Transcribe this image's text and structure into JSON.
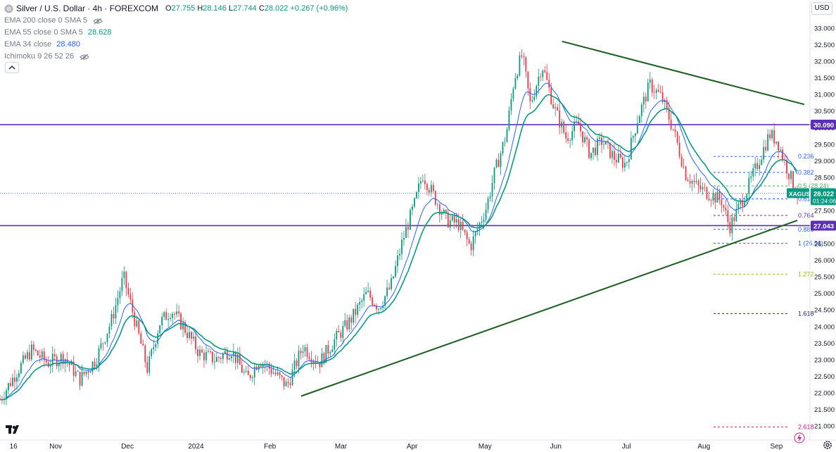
{
  "header": {
    "symbol_icon": "silver-coin-icon",
    "title": "Silver / U.S. Dollar · 4h · FOREXCOM",
    "open_label": "O",
    "open": "27.755",
    "high_label": "H",
    "high": "28.146",
    "low_label": "L",
    "low": "27.744",
    "close_label": "C",
    "close": "28.022",
    "change": "+0.267 (+0.96%)"
  },
  "indicators": [
    {
      "name": "EMA 200 close 0 SMA 5",
      "value": "",
      "color": "#787b86"
    },
    {
      "name": "EMA 55 close 0 SMA 5",
      "value": "28.628",
      "color": "#089981"
    },
    {
      "name": "EMA 34 close",
      "value": "28.480",
      "color": "#2962ff"
    },
    {
      "name": "Ichimoku 9 26 52 26",
      "value": "",
      "color": "#787b86"
    }
  ],
  "currency_label": "USD",
  "logo": "tradingview-logo",
  "chart_data": {
    "type": "candlestick",
    "symbol": "XAGUSD",
    "timeframe": "4h",
    "x_tick_labels": [
      "16",
      "Nov",
      "Dec",
      "2024",
      "Feb",
      "Mar",
      "Apr",
      "May",
      "Jun",
      "Jul",
      "Aug",
      "Sep"
    ],
    "y_tick_labels": [
      "21.000",
      "21.500",
      "22.000",
      "22.500",
      "23.000",
      "23.500",
      "24.000",
      "24.500",
      "25.000",
      "25.500",
      "26.000",
      "26.500",
      "27.000",
      "27.500",
      "28.000",
      "28.500",
      "29.000",
      "29.500",
      "30.000",
      "30.500",
      "31.000",
      "31.500",
      "32.000",
      "32.500",
      "33.000"
    ],
    "ylim": [
      20.7,
      33.3
    ],
    "price_path": [
      [
        0,
        21.8
      ],
      [
        0.02,
        22.6
      ],
      [
        0.04,
        23.3
      ],
      [
        0.06,
        22.9
      ],
      [
        0.08,
        23.1
      ],
      [
        0.1,
        22.4
      ],
      [
        0.12,
        23.0
      ],
      [
        0.14,
        24.2
      ],
      [
        0.155,
        25.5
      ],
      [
        0.17,
        24.1
      ],
      [
        0.185,
        22.7
      ],
      [
        0.2,
        24.1
      ],
      [
        0.215,
        24.5
      ],
      [
        0.23,
        24.0
      ],
      [
        0.25,
        23.2
      ],
      [
        0.27,
        23.0
      ],
      [
        0.29,
        23.3
      ],
      [
        0.31,
        22.4
      ],
      [
        0.325,
        23.0
      ],
      [
        0.34,
        22.7
      ],
      [
        0.36,
        22.2
      ],
      [
        0.38,
        23.4
      ],
      [
        0.4,
        22.9
      ],
      [
        0.42,
        23.6
      ],
      [
        0.44,
        24.2
      ],
      [
        0.46,
        25.0
      ],
      [
        0.475,
        24.6
      ],
      [
        0.49,
        25.2
      ],
      [
        0.505,
        26.6
      ],
      [
        0.52,
        27.7
      ],
      [
        0.53,
        28.6
      ],
      [
        0.545,
        27.9
      ],
      [
        0.56,
        27.2
      ],
      [
        0.575,
        27.1
      ],
      [
        0.59,
        26.4
      ],
      [
        0.61,
        27.6
      ],
      [
        0.62,
        28.6
      ],
      [
        0.635,
        29.8
      ],
      [
        0.645,
        31.5
      ],
      [
        0.655,
        32.2
      ],
      [
        0.665,
        30.7
      ],
      [
        0.68,
        31.9
      ],
      [
        0.695,
        30.6
      ],
      [
        0.71,
        29.7
      ],
      [
        0.725,
        30.1
      ],
      [
        0.74,
        29.2
      ],
      [
        0.755,
        29.6
      ],
      [
        0.77,
        29.1
      ],
      [
        0.785,
        28.9
      ],
      [
        0.8,
        30.3
      ],
      [
        0.815,
        31.3
      ],
      [
        0.83,
        30.9
      ],
      [
        0.845,
        29.9
      ],
      [
        0.86,
        28.6
      ],
      [
        0.875,
        28.2
      ],
      [
        0.89,
        28.0
      ],
      [
        0.905,
        27.8
      ],
      [
        0.915,
        27.0
      ],
      [
        0.925,
        27.5
      ],
      [
        0.94,
        28.3
      ],
      [
        0.955,
        29.2
      ],
      [
        0.965,
        29.8
      ],
      [
        0.975,
        29.6
      ],
      [
        0.985,
        28.9
      ],
      [
        0.995,
        28.3
      ],
      [
        1.0,
        28.02
      ]
    ],
    "series": [
      {
        "name": "EMA 55 close 0 SMA 5",
        "color": "#089981"
      },
      {
        "name": "EMA 34 close",
        "color": "#2962ff"
      }
    ],
    "horizontal_levels": [
      {
        "price": 30.09,
        "label": "30.090",
        "color": "#5b2fb5"
      },
      {
        "price": 27.043,
        "label": "27.043",
        "color": "#5b2fb5"
      }
    ],
    "current_price": {
      "symbol": "XAGUSD",
      "price": "28.022",
      "countdown": "01:24:06",
      "color": "#089981"
    },
    "fibonacci": [
      {
        "level": "0.236",
        "price": 29.13,
        "color": "#2962ff"
      },
      {
        "level": "0.382",
        "price": 28.65,
        "color": "#2962ff"
      },
      {
        "level": "0.5 (28.24)",
        "price": 28.24,
        "color": "#4caf50"
      },
      {
        "level": "0.618 (27.85)",
        "price": 27.85,
        "color": "#2962ff"
      },
      {
        "level": "0.764",
        "price": 27.35,
        "color": "#5b2fb5"
      },
      {
        "level": "0.886",
        "price": 26.93,
        "color": "#2962ff"
      },
      {
        "level": "1 (26.51)",
        "price": 26.51,
        "color": "#2962ff"
      },
      {
        "level": "1.272",
        "price": 25.58,
        "color": "#9bbb1c"
      },
      {
        "level": "1.618",
        "price": 24.39,
        "color": "#1a237e"
      },
      {
        "level": "2.618",
        "price": 20.97,
        "color": "#c51e8a"
      }
    ],
    "trendlines": [
      {
        "name": "descending-resistance",
        "from": [
          0.705,
          32.6
        ],
        "to": [
          1.0,
          30.7
        ],
        "color": "#1b5e20"
      },
      {
        "name": "ascending-support",
        "from": [
          0.36,
          21.9
        ],
        "to": [
          1.0,
          27.2
        ],
        "color": "#1b5e20"
      }
    ],
    "grid": false
  }
}
